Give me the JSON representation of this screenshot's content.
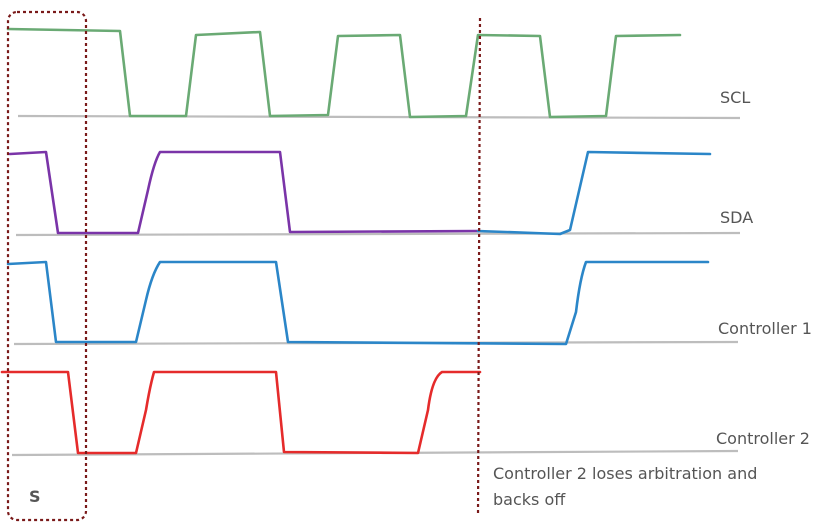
{
  "signals": [
    {
      "id": "scl",
      "label": "SCL",
      "color": "#6aaa74"
    },
    {
      "id": "sda",
      "label": "SDA",
      "color": "#7a34a8"
    },
    {
      "id": "c1",
      "label": "Controller 1",
      "color": "#2b86c8"
    },
    {
      "id": "c2",
      "label": "Controller 2",
      "color": "#e52b2b"
    }
  ],
  "baseline_color": "#bdbdbd",
  "marker_color": "#7a1a1a",
  "start_label": "S",
  "arbitration_note": {
    "line1": "Controller 2 loses arbitration and",
    "line2": "backs off"
  }
}
